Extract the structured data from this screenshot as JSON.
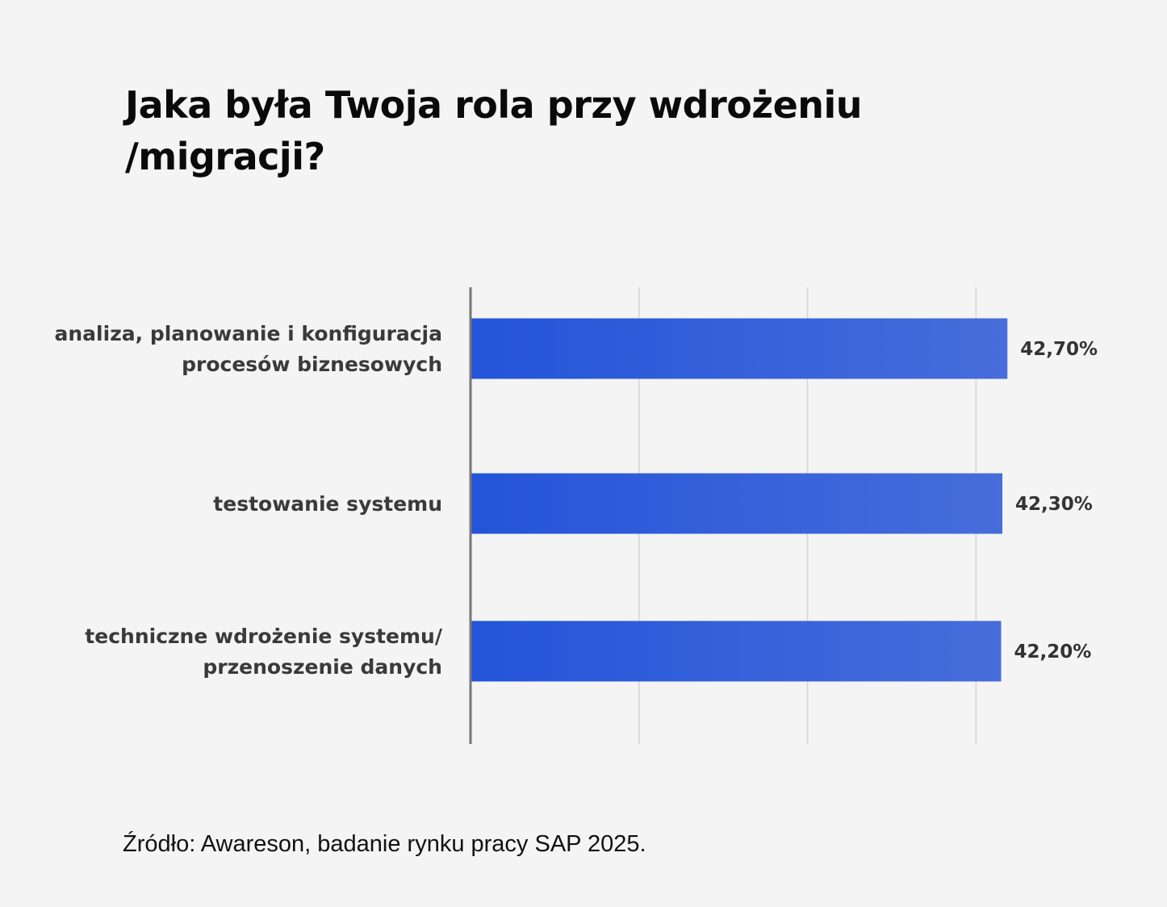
{
  "title": "Jaka była Twoja rola przy wdrożeniu /migracji?",
  "source": "Źródło: Awareson, badanie rynku pracy SAP 2025.",
  "colors": {
    "bar_start": "#2354d9",
    "bar_end": "#476dda",
    "grid": "#d4d4d4",
    "axis": "#777777"
  },
  "chart_data": {
    "type": "bar",
    "orientation": "horizontal",
    "title": "Jaka była Twoja rola przy wdrożeniu /migracji?",
    "categories": [
      [
        "analiza, planowanie i konfiguracja",
        "procesów  biznesowych"
      ],
      [
        "testowanie systemu"
      ],
      [
        "techniczne wdrożenie systemu/",
        "przenoszenie danych"
      ]
    ],
    "values": [
      42.7,
      42.3,
      42.2
    ],
    "value_labels": [
      "42,70%",
      "42,30%",
      "42,20%"
    ],
    "xlim": [
      0,
      45
    ],
    "grid": true,
    "legend": "none"
  }
}
